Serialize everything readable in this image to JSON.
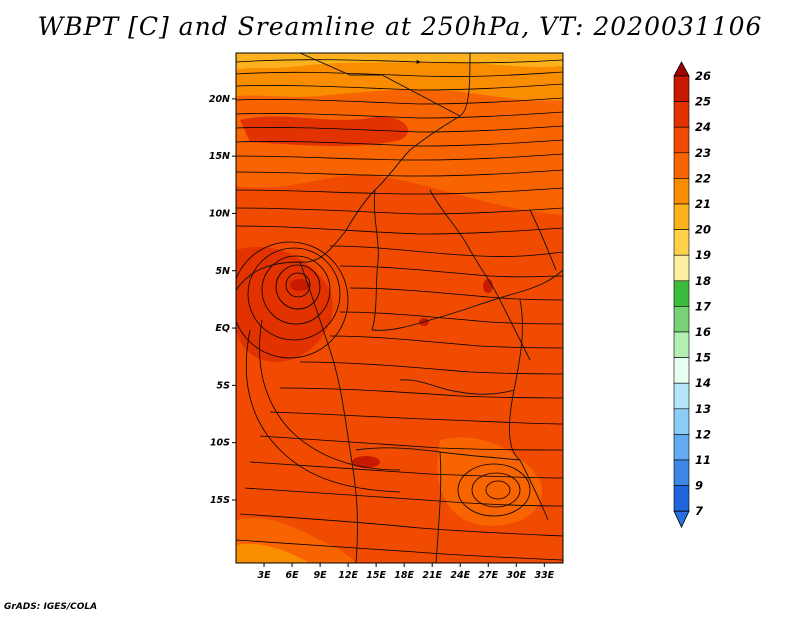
{
  "title": "WBPT [C] and Sreamline at 250hPa, VT: 2020031106",
  "footer": "GrADS: IGES/COLA",
  "map": {
    "lon_range": [
      0,
      35
    ],
    "lat_range": [
      -20.5,
      24
    ],
    "lat_ticks": [
      {
        "label": "20N",
        "value": 20
      },
      {
        "label": "15N",
        "value": 15
      },
      {
        "label": "10N",
        "value": 10
      },
      {
        "label": "5N",
        "value": 5
      },
      {
        "label": "EQ",
        "value": 0
      },
      {
        "label": "5S",
        "value": -5
      },
      {
        "label": "10S",
        "value": -10
      },
      {
        "label": "15S",
        "value": -15
      }
    ],
    "lon_ticks": [
      {
        "label": "3E",
        "value": 3
      },
      {
        "label": "6E",
        "value": 6
      },
      {
        "label": "9E",
        "value": 9
      },
      {
        "label": "12E",
        "value": 12
      },
      {
        "label": "15E",
        "value": 15
      },
      {
        "label": "18E",
        "value": 18
      },
      {
        "label": "21E",
        "value": 21
      },
      {
        "label": "24E",
        "value": 24
      },
      {
        "label": "27E",
        "value": 27
      },
      {
        "label": "30E",
        "value": 30
      },
      {
        "label": "33E",
        "value": 33
      }
    ]
  },
  "colorbar": {
    "levels": [
      {
        "label": "26",
        "color": "#a50000"
      },
      {
        "label": "25",
        "color": "#c81a00"
      },
      {
        "label": "24",
        "color": "#e23200"
      },
      {
        "label": "23",
        "color": "#f04b00"
      },
      {
        "label": "22",
        "color": "#f86400"
      },
      {
        "label": "21",
        "color": "#fa8c00"
      },
      {
        "label": "20",
        "color": "#fbb21e"
      },
      {
        "label": "19",
        "color": "#fdd24a"
      },
      {
        "label": "18",
        "color": "#fef0a0"
      },
      {
        "label": "17",
        "color": "#3cbc3c"
      },
      {
        "label": "16",
        "color": "#78d278"
      },
      {
        "label": "15",
        "color": "#b4f0b4"
      },
      {
        "label": "14",
        "color": "#e6fff0"
      },
      {
        "label": "13",
        "color": "#b4e6fa"
      },
      {
        "label": "12",
        "color": "#8ccdf5"
      },
      {
        "label": "11",
        "color": "#64aaf0"
      },
      {
        "label": "9",
        "color": "#3c87e6"
      },
      {
        "label": "7",
        "color": "#1e64dc"
      }
    ],
    "bottom_color": "#2a6ee0"
  }
}
